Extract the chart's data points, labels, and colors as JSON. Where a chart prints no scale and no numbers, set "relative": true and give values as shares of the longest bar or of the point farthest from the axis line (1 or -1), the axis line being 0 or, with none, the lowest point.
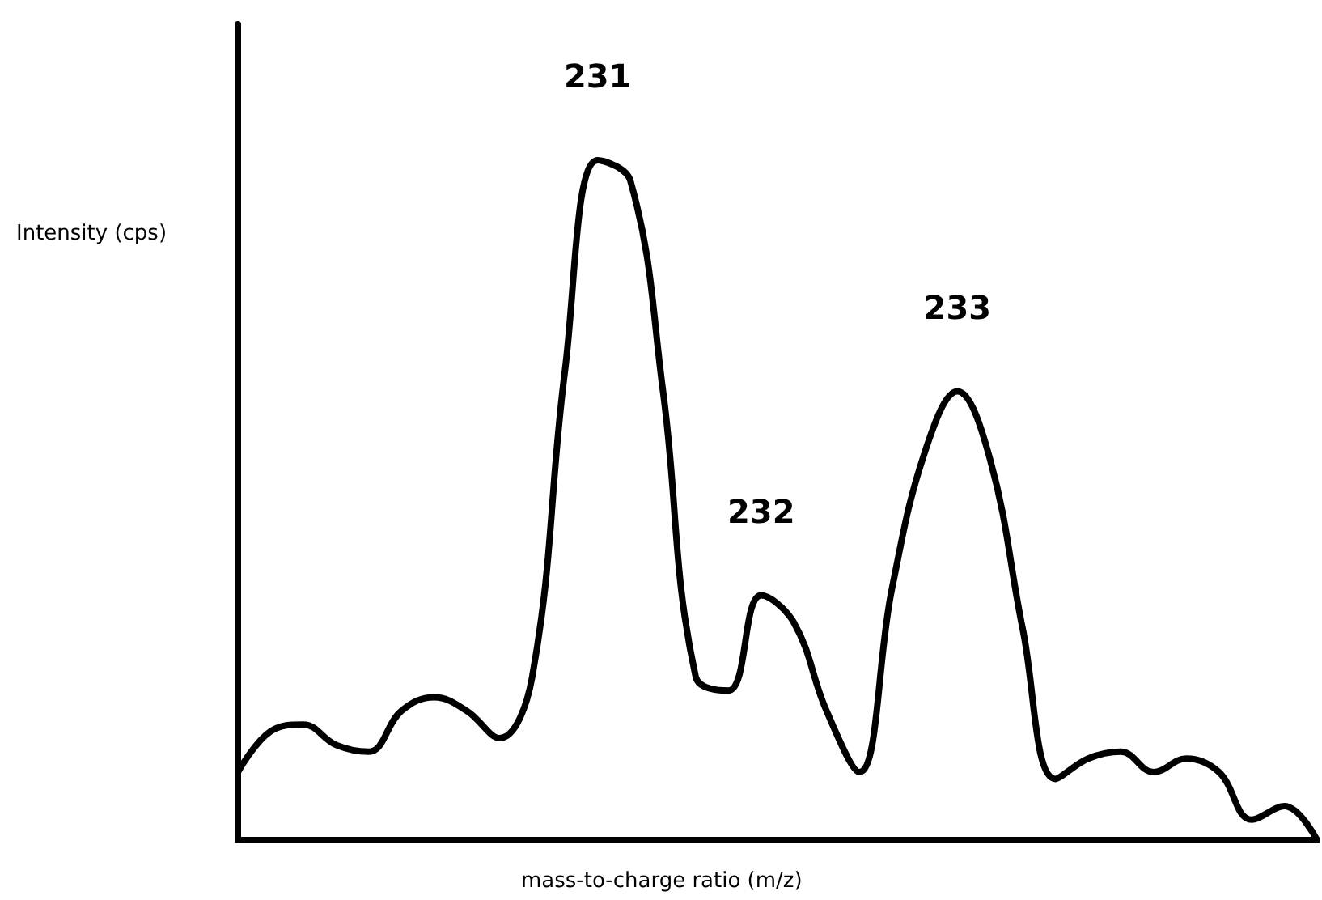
{
  "chart_data": {
    "type": "line",
    "relative": true,
    "xlabel": "mass-to-charge ratio (m/z)",
    "ylabel": "Intensity (cps)",
    "marker": "none",
    "line_style": "solid",
    "annotations": [
      "231",
      "232",
      "233"
    ],
    "categories": [
      null,
      null,
      null,
      null,
      null,
      null,
      null,
      null,
      null,
      null,
      null,
      null,
      null,
      null,
      null,
      null,
      null,
      null,
      null,
      null,
      null,
      null,
      null,
      null,
      null,
      null,
      null,
      null,
      null,
      null,
      null,
      null,
      null,
      null
    ],
    "series": [
      {
        "color": "#000000",
        "values": [
          0.1,
          0.16,
          0.17,
          0.14,
          0.13,
          0.19,
          0.21,
          0.19,
          0.15,
          0.24,
          0.69,
          1.0,
          0.97,
          0.66,
          0.24,
          0.22,
          0.36,
          0.32,
          0.19,
          0.1,
          0.37,
          0.57,
          0.66,
          0.56,
          0.31,
          0.09,
          0.12,
          0.13,
          0.1,
          0.12,
          0.1,
          0.03,
          0.05,
          0.0
        ]
      }
    ]
  }
}
